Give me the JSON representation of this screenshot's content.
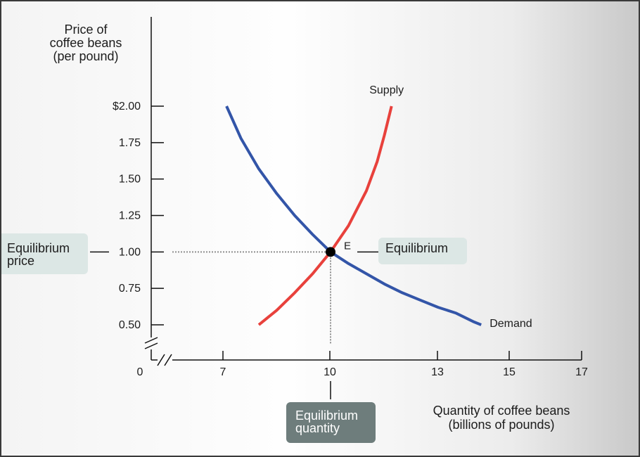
{
  "chart_data": {
    "type": "line",
    "title": "",
    "ylabel": "Price of\ncoffee beans\n(per pound)",
    "xlabel": "Quantity of coffee beans\n(billions of pounds)",
    "x_ticks": [
      0,
      7,
      10,
      13,
      15,
      17
    ],
    "x_tick_labels": [
      "0",
      "7",
      "10",
      "13",
      "15",
      "17"
    ],
    "y_ticks": [
      0.5,
      0.75,
      1.0,
      1.25,
      1.5,
      1.75,
      2.0
    ],
    "y_tick_labels": [
      "0.50",
      "0.75",
      "1.00",
      "1.25",
      "1.50",
      "1.75",
      "$2.00"
    ],
    "xlim": [
      7,
      17
    ],
    "ylim": [
      0.5,
      2.0
    ],
    "axis_breaks": true,
    "grid": false,
    "series": [
      {
        "name": "Supply",
        "color": "#e8413c",
        "x": [
          8.0,
          8.5,
          9.0,
          9.5,
          10.0,
          10.5,
          11.0,
          11.3,
          11.5,
          11.7
        ],
        "y": [
          0.5,
          0.6,
          0.72,
          0.85,
          1.0,
          1.18,
          1.42,
          1.62,
          1.8,
          2.0
        ]
      },
      {
        "name": "Demand",
        "color": "#3355a8",
        "x": [
          7.1,
          7.5,
          8.0,
          8.5,
          9.0,
          9.5,
          10.0,
          10.5,
          11.0,
          11.5,
          12.0,
          12.5,
          13.0,
          13.5,
          14.0,
          14.2
        ],
        "y": [
          2.0,
          1.78,
          1.57,
          1.4,
          1.25,
          1.12,
          1.0,
          0.92,
          0.85,
          0.78,
          0.72,
          0.67,
          0.62,
          0.58,
          0.52,
          0.5
        ]
      }
    ],
    "equilibrium": {
      "label": "E",
      "x": 10,
      "y": 1.0
    }
  },
  "annotations": {
    "equilibrium_price": "Equilibrium\nprice",
    "equilibrium_point": "Equilibrium",
    "equilibrium_quantity": "Equilibrium\nquantity"
  },
  "colors": {
    "supply": "#e8413c",
    "demand": "#3355a8",
    "annotation_box": "#dce7e5",
    "quantity_box": "#6e7d7c"
  }
}
